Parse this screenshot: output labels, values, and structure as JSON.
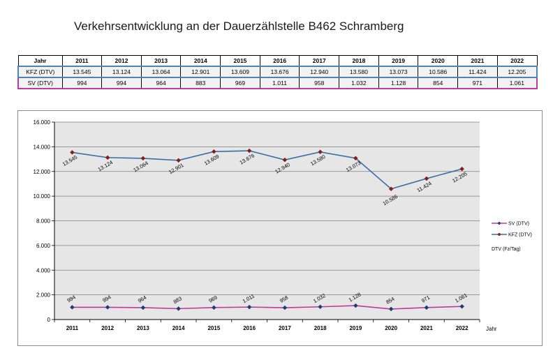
{
  "title": "Verkehrsentwicklung an der Dauerzählstelle B462 Schramberg",
  "table": {
    "header_label": "Jahr",
    "years": [
      "2011",
      "2012",
      "2013",
      "2014",
      "2015",
      "2016",
      "2017",
      "2018",
      "2019",
      "2020",
      "2021",
      "2022"
    ],
    "rows": [
      {
        "label": "KFZ (DTV)",
        "values": [
          "13.545",
          "13.124",
          "13.064",
          "12.901",
          "13.609",
          "13.676",
          "12.940",
          "13.580",
          "13.073",
          "10.586",
          "11.424",
          "12.205"
        ]
      },
      {
        "label": "SV (DTV)",
        "values": [
          "994",
          "994",
          "964",
          "883",
          "969",
          "1.011",
          "958",
          "1.032",
          "1.128",
          "854",
          "971",
          "1.061"
        ]
      }
    ]
  },
  "chart_data": {
    "type": "line",
    "categories": [
      "2011",
      "2012",
      "2013",
      "2014",
      "2015",
      "2016",
      "2017",
      "2018",
      "2019",
      "2020",
      "2021",
      "2022"
    ],
    "xlabel": "Jahr",
    "ylabel": "",
    "ylim": [
      0,
      16000
    ],
    "yticks": [
      0,
      2000,
      4000,
      6000,
      8000,
      10000,
      12000,
      14000,
      16000
    ],
    "ytick_labels": [
      "0",
      "2.000",
      "4.000",
      "6.000",
      "8.000",
      "10.000",
      "12.000",
      "14.000",
      "16.000"
    ],
    "grid": true,
    "legend_position": "right",
    "legend_note": "DTV (Fz/Tag)",
    "series": [
      {
        "name": "SV (DTV)",
        "color": "#c0399b",
        "marker_color": "#1f3c7a",
        "values": [
          994,
          994,
          964,
          883,
          969,
          1011,
          958,
          1032,
          1128,
          854,
          971,
          1061
        ],
        "labels": [
          "994",
          "994",
          "964",
          "883",
          "969",
          "1.011",
          "958",
          "1.032",
          "1.128",
          "854",
          "971",
          "1.061"
        ]
      },
      {
        "name": "KFZ (DTV)",
        "color": "#3a6ea8",
        "marker_color": "#8b1a1a",
        "values": [
          13545,
          13124,
          13064,
          12901,
          13609,
          13676,
          12940,
          13580,
          13073,
          10586,
          11424,
          12205
        ],
        "labels": [
          "13.545",
          "13.124",
          "13.064",
          "12.901",
          "13.609",
          "13.676",
          "12.940",
          "13.580",
          "13.073",
          "10.586",
          "11.424",
          "12.205"
        ]
      }
    ]
  }
}
